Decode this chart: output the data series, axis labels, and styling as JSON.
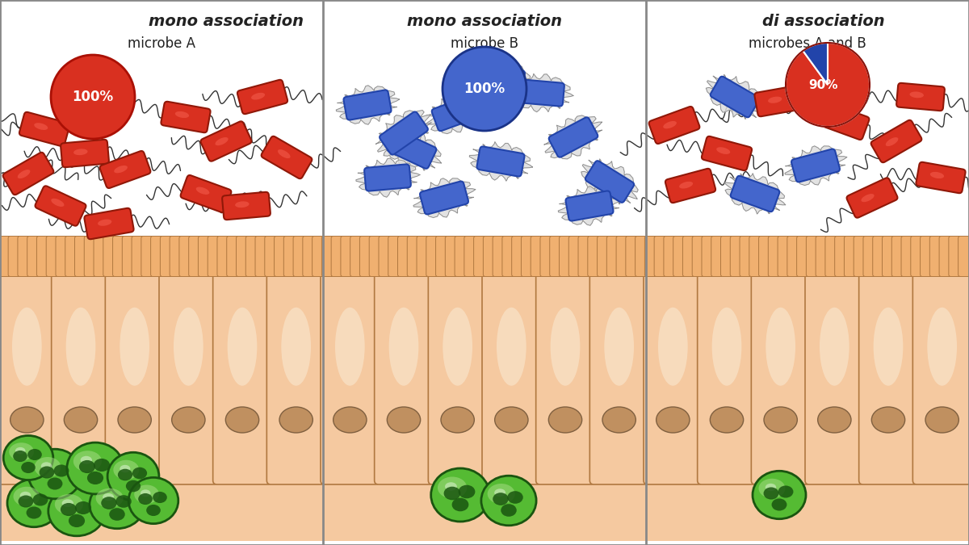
{
  "title_left": "mono association",
  "title_right": "di association",
  "subtitle_left": "microbe A",
  "subtitle_mid": "microbe B",
  "subtitle_right": "microbes A and B",
  "bg_color": "#FFFFFF",
  "skin_color": "#F5C9A0",
  "skin_light": "#FAE0C0",
  "skin_dark": "#C89060",
  "skin_border": "#B07840",
  "villi_color": "#F0B070",
  "villi_border": "#B07840",
  "cell_bg": "#F5C9A0",
  "cell_border": "#B07840",
  "nucleus_fill": "#C09060",
  "nucleus_border": "#806040",
  "microbe_A_color": "#D93020",
  "microbe_A_dark": "#901808",
  "microbe_B_color": "#4466CC",
  "microbe_B_dark": "#2244AA",
  "spiky_fill": "#DDDDDD",
  "spiky_border": "#888888",
  "circle_A_color": "#D93020",
  "circle_B_color": "#4466CC",
  "pie_A_color": "#D93020",
  "pie_B_color": "#2244AA",
  "green_outer": "#55BB33",
  "green_mid": "#44AA22",
  "green_light": "#AADE88",
  "green_nucleus": "#1A5510",
  "flagella_color": "#333333",
  "divider_color": "#888888",
  "label_color": "#222222",
  "bottom_bg": "#FAE8C8",
  "lower_bg_grad_top": "#F5D4A8",
  "lower_bg_grad_bot": "#FAF0D8"
}
